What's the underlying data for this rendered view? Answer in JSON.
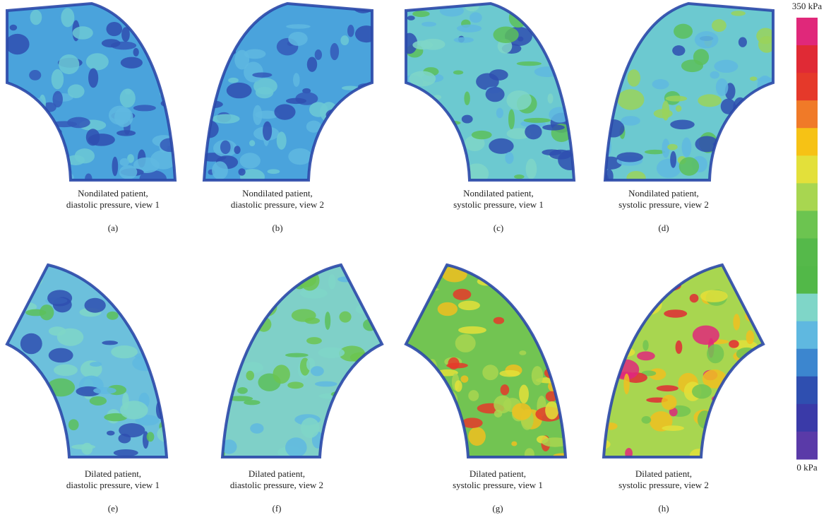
{
  "panels": [
    {
      "caption": [
        "Nondilated patient,",
        "diastolic pressure, view 1"
      ],
      "label": "(a)"
    },
    {
      "caption": [
        "Nondilated patient,",
        "diastolic pressure, view 2"
      ],
      "label": "(b)"
    },
    {
      "caption": [
        "Nondilated patient,",
        "systolic pressure, view 1"
      ],
      "label": "(c)"
    },
    {
      "caption": [
        "Nondilated patient,",
        "systolic pressure, view 2"
      ],
      "label": "(d)"
    },
    {
      "caption": [
        "Dilated patient,",
        "diastolic pressure, view 1"
      ],
      "label": "(e)"
    },
    {
      "caption": [
        "Dilated patient,",
        "diastolic pressure, view 2"
      ],
      "label": "(f)"
    },
    {
      "caption": [
        "Dilated patient,",
        "systolic pressure, view 1"
      ],
      "label": "(g)"
    },
    {
      "caption": [
        "Dilated patient,",
        "systolic pressure, view 2"
      ],
      "label": "(h)"
    }
  ],
  "colorbar": {
    "max_label": "350 kPa",
    "min_label": "0 kPa"
  }
}
